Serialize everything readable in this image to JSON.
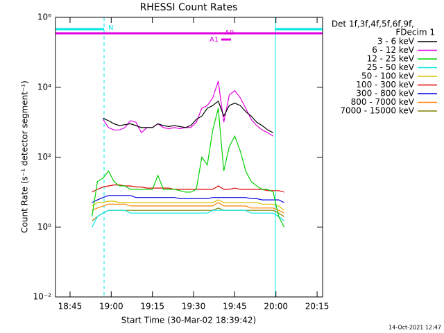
{
  "chart_data": {
    "type": "line",
    "title": "RHESSI Count Rates",
    "x_label": "Start Time (30-Mar-02 18:39:42)",
    "y_label": "Count Rate (s⁻¹ detector segment⁻¹)",
    "legend_title": [
      "Det 1f,3f,4f,5f,6f,9f,",
      "FDecim 1"
    ],
    "timestamp": "14-Oct-2021 12:47",
    "annotations": [
      "N",
      "A0",
      "A1"
    ],
    "log_y": true,
    "xlim": [
      "18:39:42",
      "20:17"
    ],
    "xticks": [
      "18:45",
      "19:00",
      "19:15",
      "19:30",
      "19:45",
      "20:00",
      "20:15"
    ],
    "ylim": [
      0.01,
      1000000
    ],
    "yticks": [
      {
        "value": 0.01,
        "label": "10⁻²"
      },
      {
        "value": 1,
        "label": "10⁰"
      },
      {
        "value": 100,
        "label": "10²"
      },
      {
        "value": 10000,
        "label": "10⁴"
      },
      {
        "value": 1000000,
        "label": "10⁶"
      }
    ],
    "x": [
      "18:53",
      "18:55",
      "18:57",
      "18:59",
      "19:01",
      "19:03",
      "19:05",
      "19:07",
      "19:09",
      "19:11",
      "19:13",
      "19:15",
      "19:17",
      "19:19",
      "19:21",
      "19:23",
      "19:25",
      "19:27",
      "19:29",
      "19:31",
      "19:33",
      "19:35",
      "19:37",
      "19:39",
      "19:41",
      "19:43",
      "19:45",
      "19:47",
      "19:49",
      "19:51",
      "19:53",
      "19:55",
      "19:57",
      "19:59",
      "20:01",
      "20:03"
    ],
    "series": [
      {
        "name": "3 - 6 keV",
        "color": "#000000",
        "values": [
          null,
          null,
          1300,
          1100,
          900,
          800,
          850,
          900,
          800,
          700,
          700,
          700,
          900,
          800,
          750,
          800,
          750,
          700,
          800,
          1200,
          1500,
          2500,
          3000,
          4000,
          1500,
          3000,
          3500,
          3000,
          2000,
          1500,
          1000,
          800,
          600,
          500,
          null,
          null
        ]
      },
      {
        "name": "6 - 12 keV",
        "color": "#e000e0",
        "values": [
          null,
          null,
          1200,
          700,
          600,
          600,
          700,
          1100,
          1000,
          500,
          700,
          700,
          900,
          700,
          650,
          700,
          650,
          700,
          700,
          1000,
          2500,
          3000,
          5000,
          15000,
          1000,
          6000,
          8000,
          5000,
          2500,
          1200,
          800,
          600,
          500,
          400,
          null,
          null
        ]
      },
      {
        "name": "12 - 25 keV",
        "color": "#00d000",
        "values": [
          2,
          20,
          25,
          40,
          20,
          15,
          15,
          12,
          12,
          12,
          12,
          12,
          30,
          12,
          12,
          12,
          11,
          10,
          10,
          12,
          100,
          60,
          600,
          2500,
          40,
          200,
          400,
          150,
          40,
          20,
          15,
          12,
          12,
          10,
          2,
          1
        ]
      },
      {
        "name": "25 - 50 keV",
        "color": "#00e8e8",
        "values": [
          1,
          2,
          2.5,
          3,
          3,
          3,
          3,
          2.5,
          2.5,
          2.5,
          2.5,
          2.5,
          2.5,
          2.5,
          2.5,
          2.5,
          2.5,
          2.5,
          2.5,
          2.5,
          2.5,
          2.5,
          3,
          3,
          3,
          3,
          3,
          3,
          3,
          2.5,
          2.5,
          2.5,
          2.5,
          2.5,
          2,
          1.5
        ]
      },
      {
        "name": "50 - 100 keV",
        "color": "#d8c000",
        "values": [
          4,
          5,
          5,
          5.5,
          5.5,
          5,
          5,
          5,
          5,
          5,
          5,
          5,
          5,
          5,
          5,
          5,
          5,
          5,
          5,
          5,
          5,
          5,
          5,
          6,
          5,
          5,
          5,
          5,
          5,
          5,
          5,
          4.5,
          4.5,
          4.5,
          4,
          3
        ]
      },
      {
        "name": "100 - 300 keV",
        "color": "#e00000",
        "values": [
          10,
          12,
          14,
          15,
          16,
          16,
          15,
          15,
          14,
          14,
          13,
          13,
          13,
          13,
          13,
          12,
          12,
          12,
          12,
          12,
          12,
          12,
          12,
          15,
          12,
          12,
          13,
          12,
          12,
          12,
          12,
          12,
          11,
          11,
          11,
          10
        ]
      },
      {
        "name": "300 - 800 keV",
        "color": "#0000e0",
        "values": [
          5,
          6,
          7,
          8,
          8,
          8,
          8,
          8,
          7,
          7,
          7,
          7,
          7,
          7,
          7,
          7,
          6.5,
          6.5,
          6.5,
          6.5,
          6.5,
          6.5,
          7,
          7,
          7,
          7,
          7,
          7,
          7,
          6.5,
          6.5,
          6,
          6,
          6,
          6,
          5
        ]
      },
      {
        "name": "800 - 7000 keV",
        "color": "#ff8000",
        "values": [
          3,
          3.5,
          4,
          4.5,
          4.5,
          4.5,
          4.5,
          4,
          4,
          4,
          4,
          4,
          4,
          4,
          4,
          4,
          4,
          4,
          4,
          4,
          4,
          4,
          4,
          5,
          4,
          4,
          4,
          4,
          4,
          3.5,
          3.5,
          3.5,
          3.5,
          3.5,
          3,
          2.5
        ]
      },
      {
        "name": "7000 - 15000 keV",
        "color": "#808000",
        "values": [
          1.5,
          2,
          2.5,
          3,
          3,
          3,
          3,
          3,
          3,
          3,
          3,
          3,
          3,
          3,
          3,
          3,
          3,
          3,
          3,
          3,
          3,
          3,
          3,
          3.5,
          3,
          3,
          3,
          3,
          3,
          3,
          3,
          3,
          3,
          3,
          2.5,
          2
        ]
      }
    ]
  }
}
